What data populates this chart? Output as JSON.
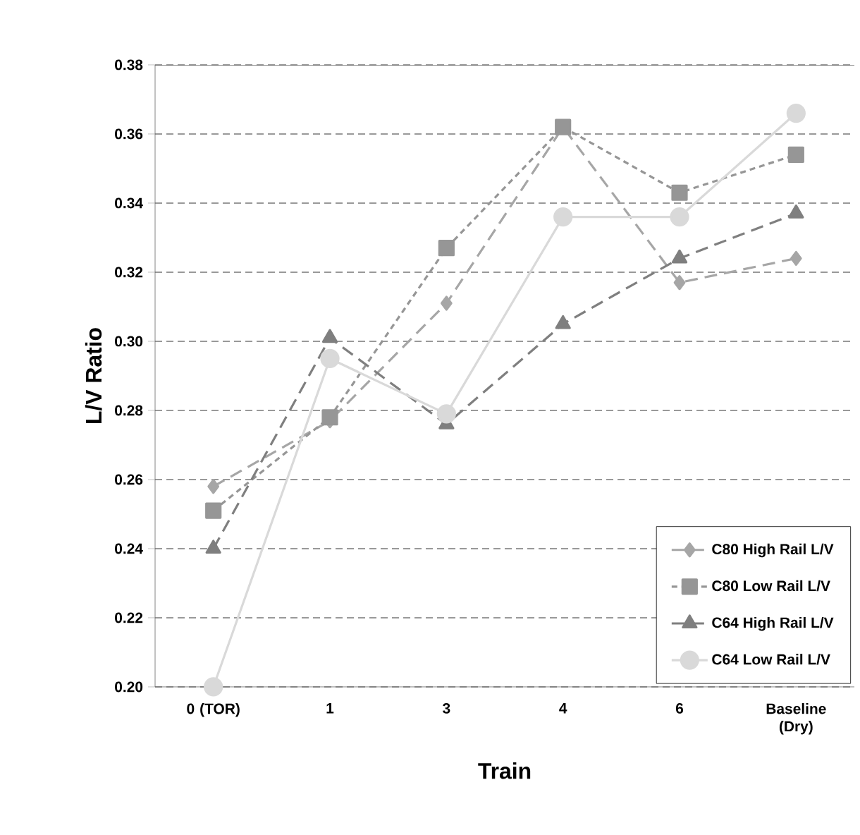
{
  "chart_data": {
    "type": "line",
    "xlabel": "Train",
    "ylabel": "L/V Ratio",
    "categories": [
      "0 (TOR)",
      "1",
      "3",
      "4",
      "6",
      "Baseline (Dry)"
    ],
    "ylim": [
      0.2,
      0.38
    ],
    "yticks": [
      {
        "value": 0.2,
        "label": "0.20"
      },
      0.22,
      0.24,
      0.26,
      0.28,
      {
        "value": 0.3,
        "label": "0.30"
      },
      0.32,
      0.34,
      0.36,
      0.38
    ],
    "grid": "y",
    "legend": "bottom right",
    "series": [
      {
        "name": "C80 High Rail L/V",
        "color": "#a6a6a6",
        "marker": "diamond",
        "line_style": "dashed",
        "values": [
          0.258,
          0.277,
          0.311,
          0.362,
          0.317,
          0.324
        ]
      },
      {
        "name": "C80 Low Rail L/V",
        "color": "#969696",
        "marker": "square",
        "line_style": "dotted",
        "values": [
          0.251,
          0.278,
          0.327,
          0.362,
          0.343,
          0.354
        ]
      },
      {
        "name": "C64 High Rail L/V",
        "color": "#7f7f7f",
        "marker": "triangle",
        "line_style": "dashed",
        "values": [
          0.24,
          0.301,
          0.276,
          0.305,
          0.324,
          0.337
        ]
      },
      {
        "name": "C64 Low Rail L/V",
        "color": "#d9d9d9",
        "marker": "circle",
        "line_style": "solid",
        "values": [
          0.2,
          0.295,
          0.279,
          0.336,
          0.336,
          0.366
        ]
      }
    ]
  }
}
